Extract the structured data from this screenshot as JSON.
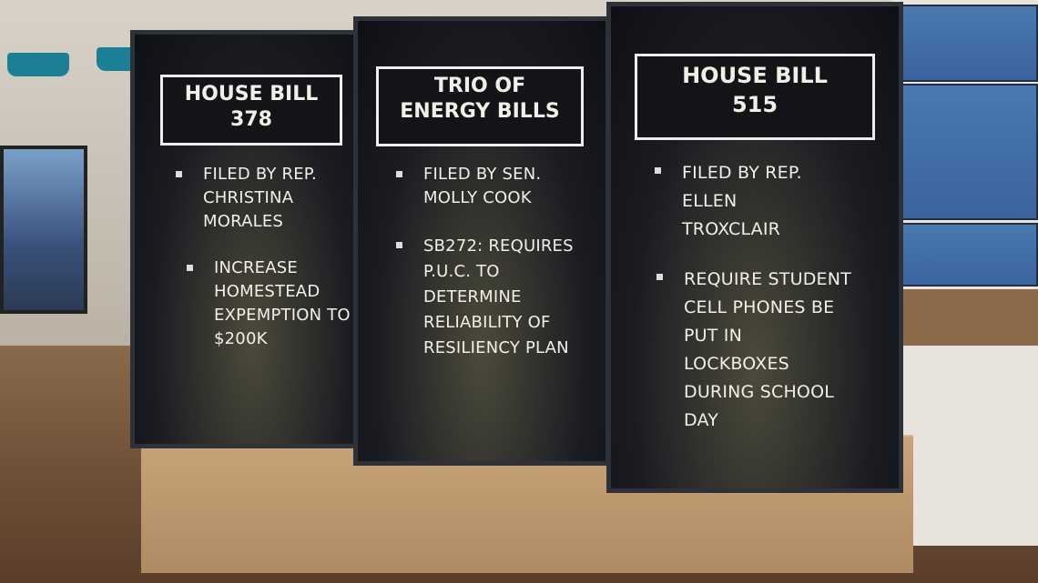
{
  "panels": [
    {
      "title": [
        "HOUSE BILL",
        "378"
      ],
      "bullets": [
        [
          "FILED BY REP.",
          "CHRISTINA",
          "MORALES"
        ],
        [
          "INCREASE",
          "HOMESTEAD",
          "EXPEMPTION TO",
          "$200K"
        ]
      ]
    },
    {
      "title": [
        "TRIO OF",
        "ENERGY BILLS"
      ],
      "bullets": [
        [
          "FILED BY SEN.",
          "MOLLY COOK"
        ],
        [
          "SB272: REQUIRES",
          "P.U.C. TO",
          "DETERMINE",
          "RELIABILITY OF",
          "RESILIENCY PLAN"
        ]
      ]
    },
    {
      "title": [
        "HOUSE BILL",
        "515"
      ],
      "bullets": [
        [
          "FILED BY REP.",
          "ELLEN",
          "TROXCLAIR"
        ],
        [
          "REQUIRE STUDENT",
          "CELL PHONES BE",
          "PUT IN",
          "LOCKBOXES",
          "DURING SCHOOL",
          "DAY"
        ]
      ]
    }
  ]
}
